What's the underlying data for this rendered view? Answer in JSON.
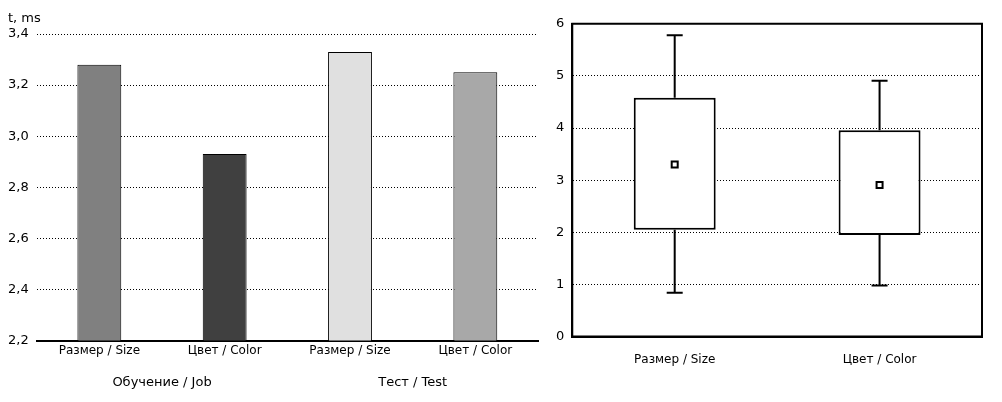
{
  "chart_data": [
    {
      "type": "bar",
      "ylabel": "t, ms",
      "categories": [
        "Размер / Size",
        "Цвет / Color",
        "Размер / Size",
        "Цвет / Color"
      ],
      "values": [
        3.28,
        2.93,
        3.33,
        3.25
      ],
      "colors": [
        "#808080",
        "#404040",
        "#e0e0e0",
        "#a8a8a8"
      ],
      "ylim": [
        2.2,
        3.4
      ],
      "yticks": [
        {
          "value": 2.2,
          "label": "2,2"
        },
        {
          "value": 2.4,
          "label": "2,4"
        },
        {
          "value": 2.6,
          "label": "2,6"
        },
        {
          "value": 2.8,
          "label": "2,8"
        },
        {
          "value": 3.0,
          "label": "3,0"
        },
        {
          "value": 3.2,
          "label": "3,2"
        },
        {
          "value": 3.4,
          "label": "3,4"
        }
      ],
      "annotations": [
        "Обучение / Job",
        "Тест / Test"
      ],
      "grid": "y",
      "legend": false
    },
    {
      "type": "box",
      "categories": [
        "Размер / Size",
        "Цвет / Color"
      ],
      "boxes": [
        {
          "low": 0.84,
          "q1": 2.05,
          "median": 3.3,
          "q3": 4.58,
          "high": 5.78
        },
        {
          "low": 0.98,
          "q1": 1.95,
          "median": 2.91,
          "q3": 3.96,
          "high": 4.91
        }
      ],
      "ylim": [
        0,
        6
      ],
      "yticks": [
        0,
        1,
        2,
        3,
        4,
        5,
        6
      ],
      "grid": "y",
      "legend": false
    }
  ]
}
